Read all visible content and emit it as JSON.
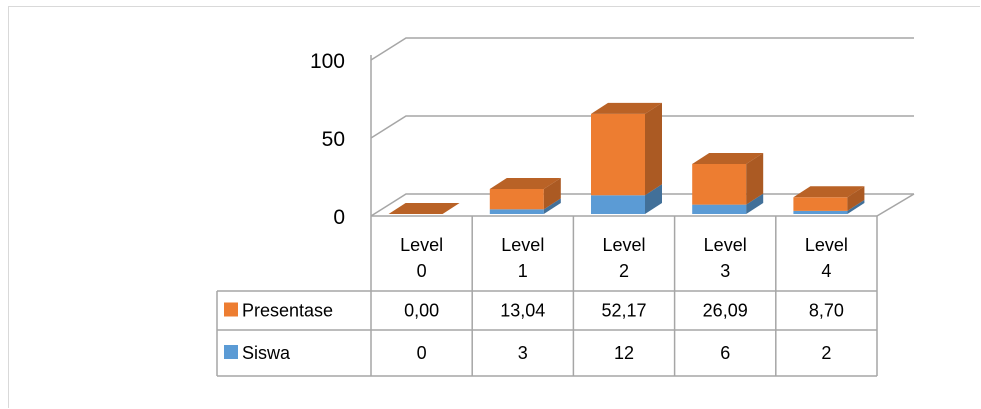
{
  "chart_data": {
    "type": "bar",
    "stacked": true,
    "three_d": true,
    "categories": [
      "Level 0",
      "Level 1",
      "Level 2",
      "Level 3",
      "Level 4"
    ],
    "category_lines": [
      [
        "Level",
        "0"
      ],
      [
        "Level",
        "1"
      ],
      [
        "Level",
        "2"
      ],
      [
        "Level",
        "3"
      ],
      [
        "Level",
        "4"
      ]
    ],
    "series": [
      {
        "name": "Siswa",
        "values": [
          0,
          3,
          12,
          6,
          2
        ],
        "labels": [
          "0",
          "3",
          "12",
          "6",
          "2"
        ],
        "color": "#5b9bd5"
      },
      {
        "name": "Presentase",
        "values": [
          0.0,
          13.04,
          52.17,
          26.09,
          8.7
        ],
        "labels": [
          "0,00",
          "13,04",
          "52,17",
          "26,09",
          "8,70"
        ],
        "color": "#ed7d31"
      }
    ],
    "table_rows": [
      "Presentase",
      "Siswa"
    ],
    "yticks": [
      "0",
      "50",
      "100"
    ],
    "ylim": [
      0,
      100
    ],
    "grid": true,
    "legend": "data-table"
  }
}
